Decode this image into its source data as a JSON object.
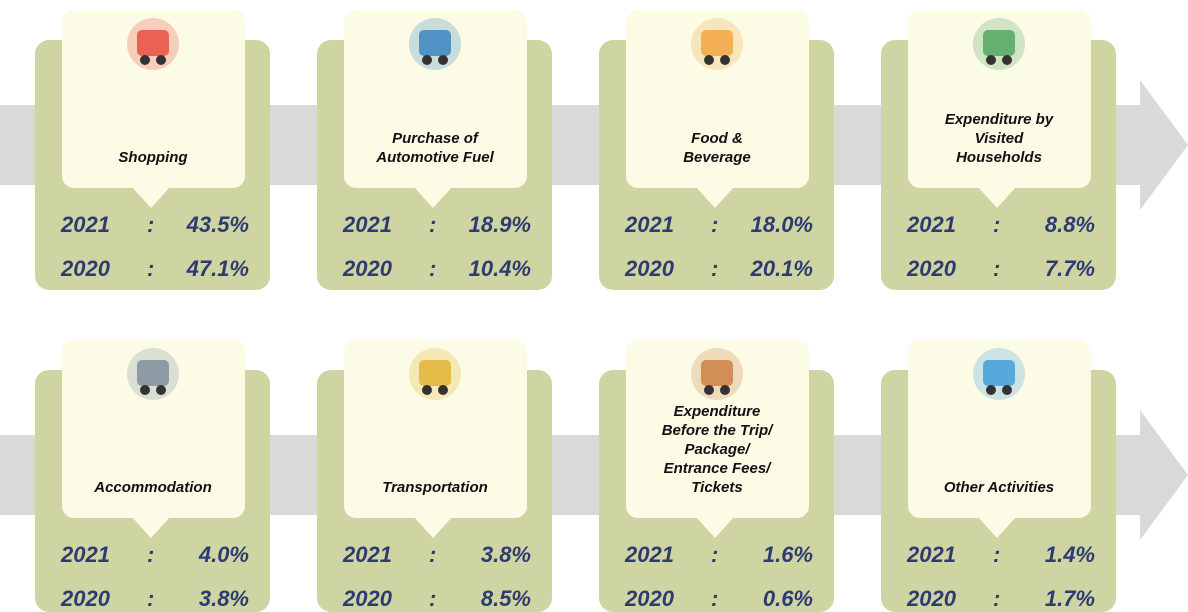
{
  "separator": ":",
  "cards": [
    {
      "label": [
        "Shopping"
      ],
      "rows": [
        {
          "year": "2021",
          "value": "43.5%"
        },
        {
          "year": "2020",
          "value": "47.1%"
        }
      ]
    },
    {
      "label": [
        "Purchase of",
        "Automotive Fuel"
      ],
      "rows": [
        {
          "year": "2021",
          "value": "18.9%"
        },
        {
          "year": "2020",
          "value": "10.4%"
        }
      ]
    },
    {
      "label": [
        "Food &",
        "Beverage"
      ],
      "rows": [
        {
          "year": "2021",
          "value": "18.0%"
        },
        {
          "year": "2020",
          "value": "20.1%"
        }
      ]
    },
    {
      "label": [
        "Expenditure by",
        "Visited",
        "Households"
      ],
      "rows": [
        {
          "year": "2021",
          "value": "8.8%"
        },
        {
          "year": "2020",
          "value": "7.7%"
        }
      ]
    },
    {
      "label": [
        "Accommodation"
      ],
      "rows": [
        {
          "year": "2021",
          "value": "4.0%"
        },
        {
          "year": "2020",
          "value": "3.8%"
        }
      ]
    },
    {
      "label": [
        "Transportation"
      ],
      "rows": [
        {
          "year": "2021",
          "value": "3.8%"
        },
        {
          "year": "2020",
          "value": "8.5%"
        }
      ]
    },
    {
      "label": [
        "Expenditure",
        "Before the Trip/",
        "Package/",
        "Entrance Fees/",
        "Tickets"
      ],
      "rows": [
        {
          "year": "2021",
          "value": "1.6%"
        },
        {
          "year": "2020",
          "value": "0.6%"
        }
      ]
    },
    {
      "label": [
        "Other Activities"
      ],
      "rows": [
        {
          "year": "2021",
          "value": "1.4%"
        },
        {
          "year": "2020",
          "value": "1.7%"
        }
      ]
    }
  ]
}
